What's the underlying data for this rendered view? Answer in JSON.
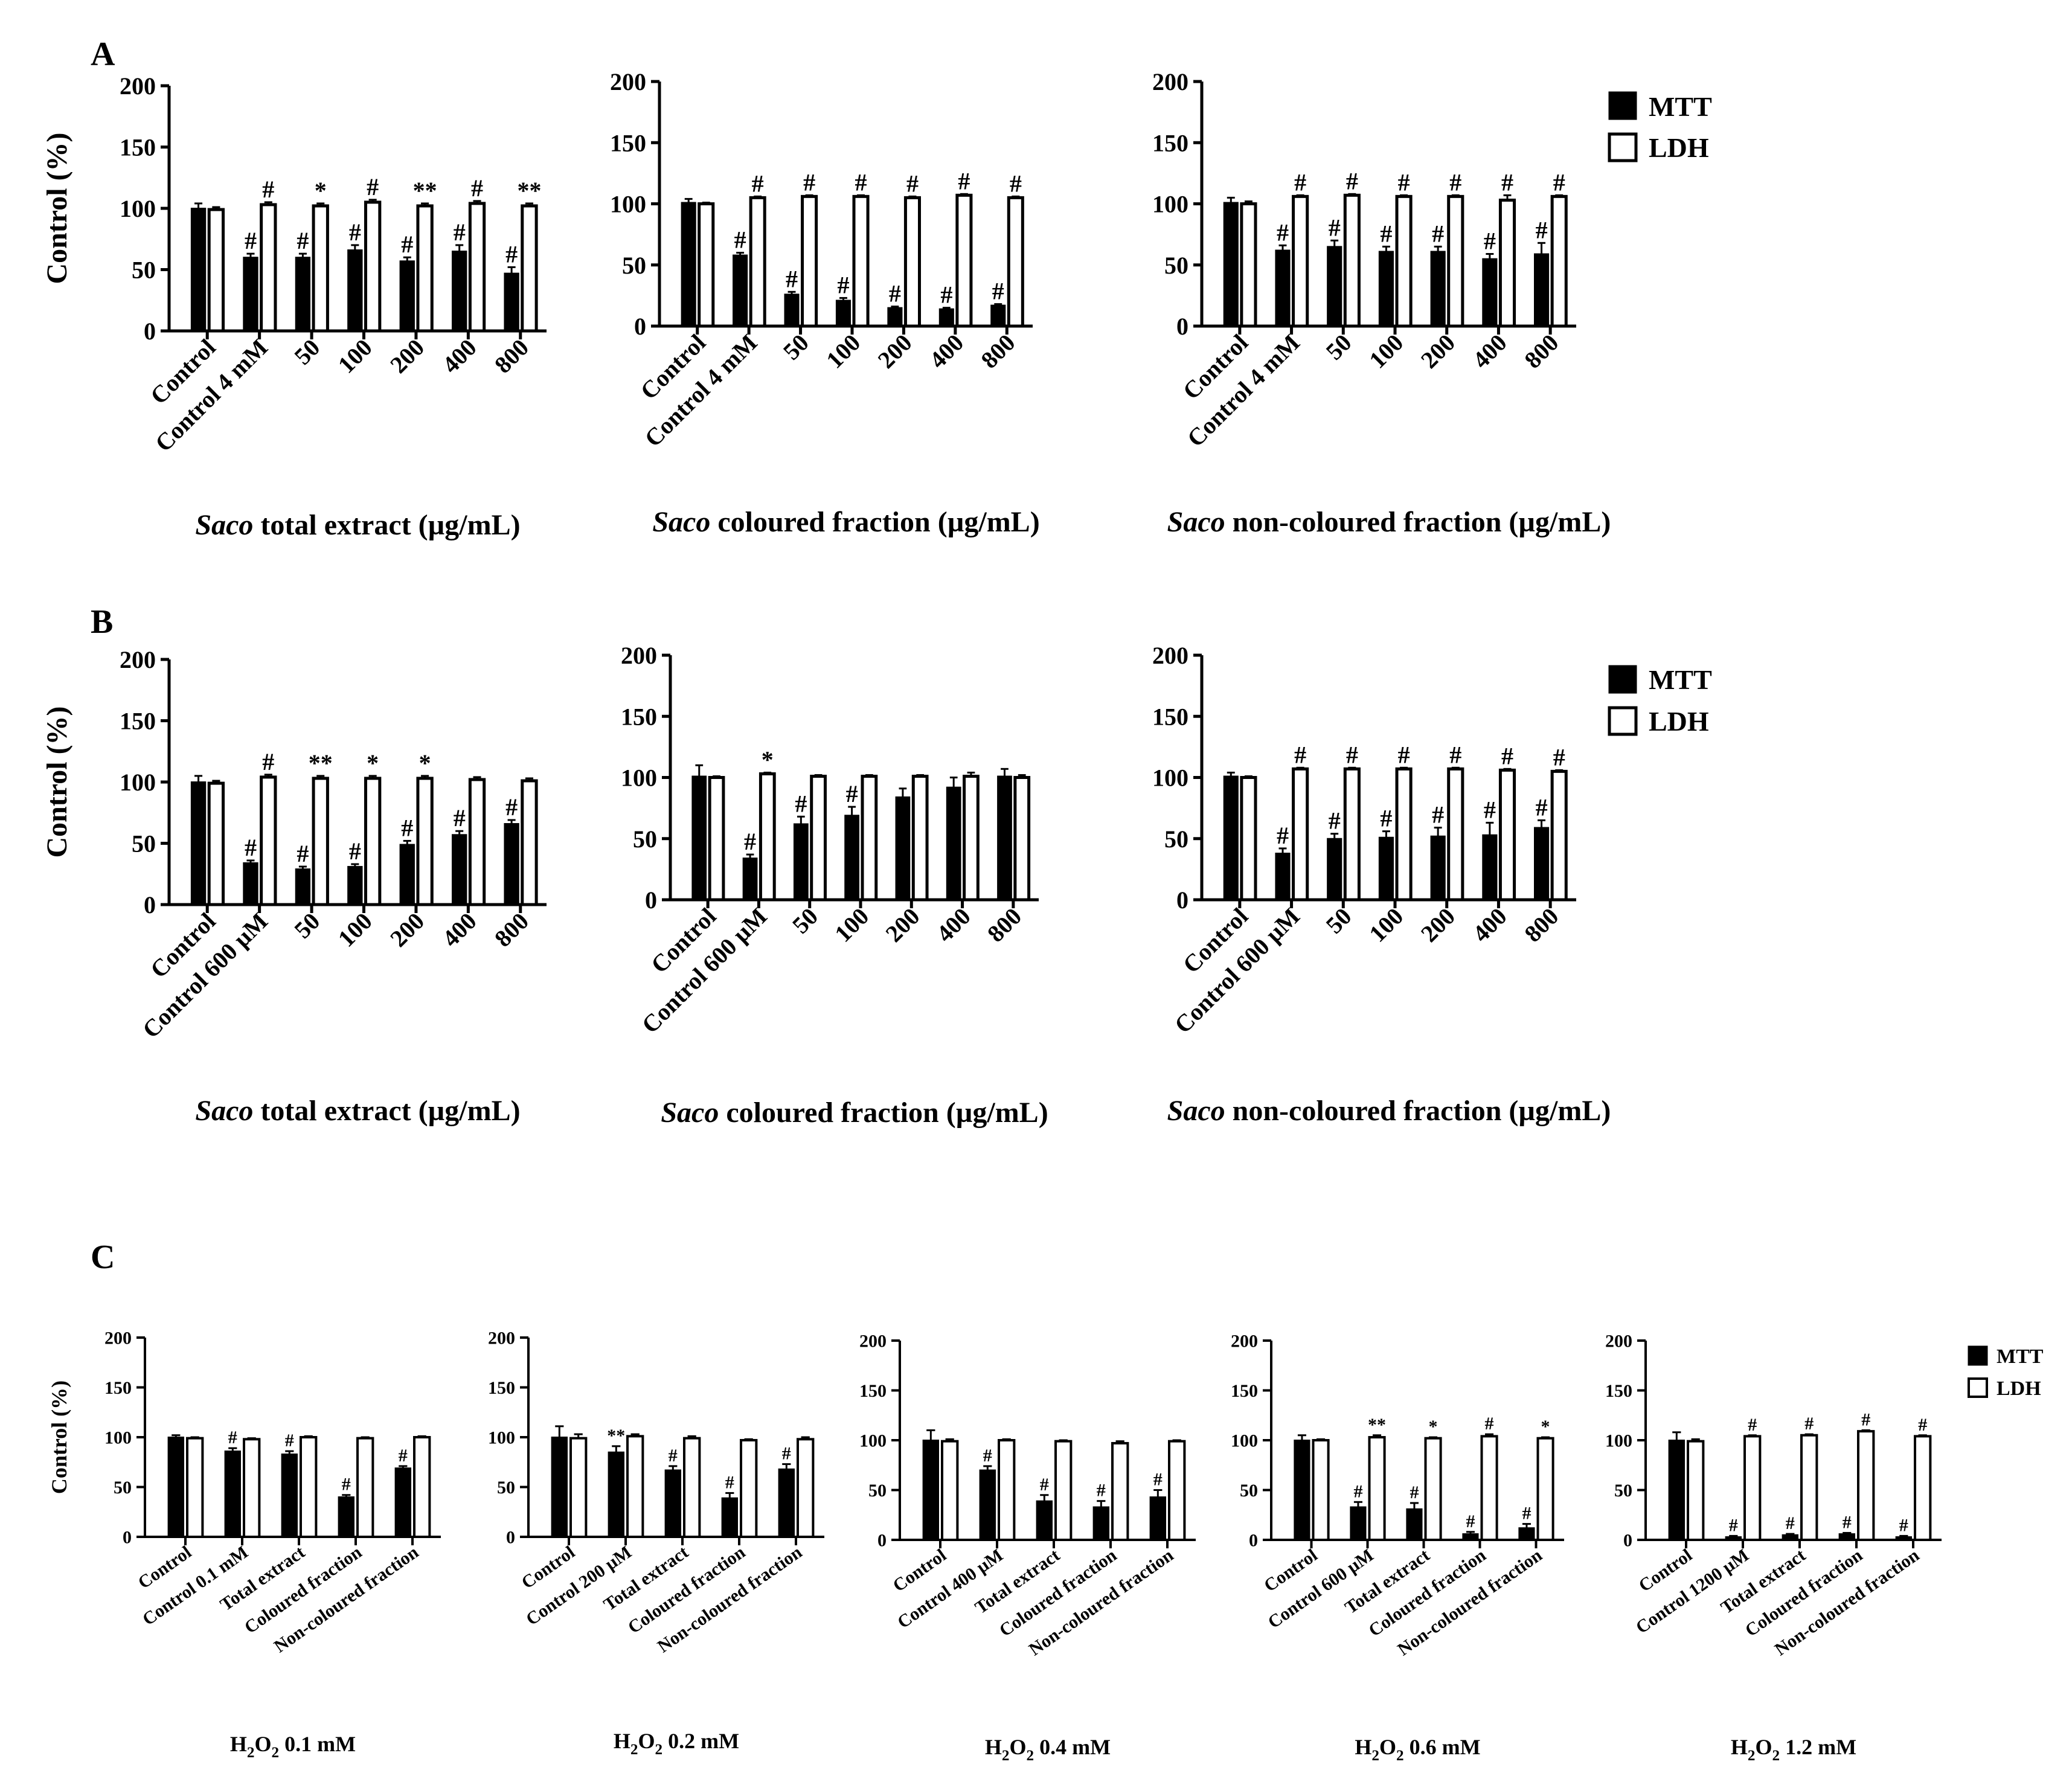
{
  "panel_labels": [
    "A",
    "B",
    "C"
  ],
  "legend": {
    "mtt": "MTT",
    "ldh": "LDH"
  },
  "colors": {
    "mtt": "#000000",
    "ldh": "#ffffff",
    "stroke": "#000000"
  },
  "chart_data": [
    {
      "id": "A1",
      "type": "bar",
      "ylabel": "Control (%)",
      "ylim": [
        0,
        200
      ],
      "yticks": [
        0,
        50,
        100,
        150,
        200
      ],
      "xlabel": {
        "italic": "Saco",
        "rest": " total extract (µg/mL)"
      },
      "categories": [
        "Control",
        "Control 4 mM",
        "50",
        "100",
        "200",
        "400",
        "800"
      ],
      "series": [
        {
          "name": "MTT",
          "values": [
            100,
            60,
            60,
            66,
            57,
            65,
            47
          ],
          "errors": [
            4,
            3,
            3,
            4,
            3,
            5,
            5
          ],
          "marks": [
            "",
            "#",
            "#",
            "#",
            "#",
            "#",
            "#"
          ]
        },
        {
          "name": "LDH",
          "values": [
            99,
            103,
            102,
            105,
            102,
            104,
            102
          ],
          "errors": [
            2,
            2,
            2,
            2,
            2,
            2,
            2
          ],
          "marks": [
            "",
            "#",
            "*",
            "#",
            "**",
            "#",
            "**"
          ]
        }
      ]
    },
    {
      "id": "A2",
      "type": "bar",
      "ylabel": "",
      "ylim": [
        0,
        200
      ],
      "yticks": [
        0,
        50,
        100,
        150,
        200
      ],
      "xlabel": {
        "italic": "Saco",
        "rest": " coloured fraction (µg/mL)"
      },
      "categories": [
        "Control",
        "Control 4 mM",
        "50",
        "100",
        "200",
        "400",
        "800"
      ],
      "series": [
        {
          "name": "MTT",
          "values": [
            101,
            58,
            26,
            21,
            15,
            14,
            17
          ],
          "errors": [
            3,
            2,
            2,
            2,
            1,
            1,
            1
          ],
          "marks": [
            "",
            "#",
            "#",
            "#",
            "#",
            "#",
            "#"
          ]
        },
        {
          "name": "LDH",
          "values": [
            100,
            105,
            106,
            106,
            105,
            107,
            105
          ],
          "errors": [
            1,
            1,
            1,
            1,
            1,
            1,
            1
          ],
          "marks": [
            "",
            "#",
            "#",
            "#",
            "#",
            "#",
            "#"
          ]
        }
      ]
    },
    {
      "id": "A3",
      "type": "bar",
      "ylabel": "",
      "ylim": [
        0,
        200
      ],
      "yticks": [
        0,
        50,
        100,
        150,
        200
      ],
      "xlabel": {
        "italic": "Saco",
        "rest": " non-coloured fraction (µg/mL)"
      },
      "categories": [
        "Control",
        "Control 4 mM",
        "50",
        "100",
        "200",
        "400",
        "800"
      ],
      "series": [
        {
          "name": "MTT",
          "values": [
            101,
            62,
            65,
            61,
            61,
            55,
            59
          ],
          "errors": [
            4,
            4,
            5,
            4,
            4,
            4,
            9
          ],
          "marks": [
            "",
            "#",
            "#",
            "#",
            "#",
            "#",
            "#"
          ]
        },
        {
          "name": "LDH",
          "values": [
            100,
            106,
            107,
            106,
            106,
            103,
            106
          ],
          "errors": [
            2,
            1,
            1,
            1,
            1,
            4,
            1
          ],
          "marks": [
            "",
            "#",
            "#",
            "#",
            "#",
            "#",
            "#"
          ]
        }
      ]
    },
    {
      "id": "B1",
      "type": "bar",
      "ylabel": "Control (%)",
      "ylim": [
        0,
        200
      ],
      "yticks": [
        0,
        50,
        100,
        150,
        200
      ],
      "xlabel": {
        "italic": "Saco",
        "rest": " total extract (µg/mL)"
      },
      "categories": [
        "Control",
        "Control 600 µM",
        "50",
        "100",
        "200",
        "400",
        "800"
      ],
      "series": [
        {
          "name": "MTT",
          "values": [
            100,
            34,
            29,
            31,
            49,
            57,
            66
          ],
          "errors": [
            5,
            2,
            2,
            2,
            3,
            3,
            3
          ],
          "marks": [
            "",
            "#",
            "#",
            "#",
            "#",
            "#",
            "#"
          ]
        },
        {
          "name": "LDH",
          "values": [
            99,
            104,
            103,
            103,
            103,
            102,
            101
          ],
          "errors": [
            2,
            2,
            2,
            2,
            2,
            2,
            2
          ],
          "marks": [
            "",
            "#",
            "**",
            "*",
            "*",
            "",
            ""
          ]
        }
      ]
    },
    {
      "id": "B2",
      "type": "bar",
      "ylabel": "",
      "ylim": [
        0,
        200
      ],
      "yticks": [
        0,
        50,
        100,
        150,
        200
      ],
      "xlabel": {
        "italic": "Saco",
        "rest": " coloured fraction (µg/mL)"
      },
      "categories": [
        "Control",
        "Control 600 µM",
        "50",
        "100",
        "200",
        "400",
        "800"
      ],
      "series": [
        {
          "name": "MTT",
          "values": [
            101,
            34,
            62,
            69,
            84,
            92,
            101
          ],
          "errors": [
            9,
            3,
            6,
            7,
            7,
            8,
            6
          ],
          "marks": [
            "",
            "#",
            "#",
            "#",
            "",
            "",
            ""
          ]
        },
        {
          "name": "LDH",
          "values": [
            100,
            103,
            101,
            101,
            101,
            101,
            100
          ],
          "errors": [
            1,
            1,
            1,
            1,
            1,
            3,
            2
          ],
          "marks": [
            "",
            "*",
            "",
            "",
            "",
            "",
            ""
          ]
        }
      ]
    },
    {
      "id": "B3",
      "type": "bar",
      "ylabel": "",
      "ylim": [
        0,
        200
      ],
      "yticks": [
        0,
        50,
        100,
        150,
        200
      ],
      "xlabel": {
        "italic": "Saco",
        "rest": " non-coloured fraction (µg/mL)"
      },
      "categories": [
        "Control",
        "Control 600 µM",
        "50",
        "100",
        "200",
        "400",
        "800"
      ],
      "series": [
        {
          "name": "MTT",
          "values": [
            101,
            38,
            50,
            51,
            52,
            53,
            59
          ],
          "errors": [
            3,
            4,
            4,
            5,
            7,
            10,
            6
          ],
          "marks": [
            "",
            "#",
            "#",
            "#",
            "#",
            "#",
            "#"
          ]
        },
        {
          "name": "LDH",
          "values": [
            100,
            107,
            107,
            107,
            107,
            106,
            105
          ],
          "errors": [
            1,
            1,
            1,
            1,
            1,
            1,
            1
          ],
          "marks": [
            "",
            "#",
            "#",
            "#",
            "#",
            "#",
            "#"
          ]
        }
      ]
    },
    {
      "id": "C1",
      "type": "bar",
      "ylabel": "Control (%)",
      "ylim": [
        0,
        200
      ],
      "yticks": [
        0,
        50,
        100,
        150,
        200
      ],
      "xlabel": {
        "pre": "H",
        "sub1": "2",
        "mid": "O",
        "sub2": "2",
        "post": " 0.1 mM"
      },
      "categories": [
        "Control",
        "Control 0.1 mM",
        "Total extract",
        "Coloured fraction",
        "Non-coloured fraction"
      ],
      "series": [
        {
          "name": "MTT",
          "values": [
            100,
            86,
            83,
            40,
            69
          ],
          "errors": [
            2,
            3,
            3,
            2,
            2
          ],
          "marks": [
            "",
            "#",
            "#",
            "#",
            "#"
          ]
        },
        {
          "name": "LDH",
          "values": [
            99,
            98,
            100,
            99,
            100
          ],
          "errors": [
            1,
            1,
            1,
            1,
            1
          ],
          "marks": [
            "",
            "",
            "",
            "",
            ""
          ]
        }
      ]
    },
    {
      "id": "C2",
      "type": "bar",
      "ylabel": "",
      "ylim": [
        0,
        200
      ],
      "yticks": [
        0,
        50,
        100,
        150,
        200
      ],
      "xlabel": {
        "pre": "H",
        "sub1": "2",
        "mid": "O",
        "sub2": "2",
        "post": " 0.2 mM"
      },
      "categories": [
        "Control",
        "Control 200 µM",
        "Total extract",
        "Coloured fraction",
        "Non-coloured fraction"
      ],
      "series": [
        {
          "name": "MTT",
          "values": [
            100,
            85,
            67,
            39,
            68
          ],
          "errors": [
            11,
            6,
            4,
            5,
            5
          ],
          "marks": [
            "",
            "**",
            "#",
            "#",
            "#"
          ]
        },
        {
          "name": "LDH",
          "values": [
            99,
            101,
            99,
            97,
            98
          ],
          "errors": [
            4,
            2,
            2,
            1,
            2
          ],
          "marks": [
            "",
            "",
            "",
            "",
            ""
          ]
        }
      ]
    },
    {
      "id": "C3",
      "type": "bar",
      "ylabel": "",
      "ylim": [
        0,
        200
      ],
      "yticks": [
        0,
        50,
        100,
        150,
        200
      ],
      "xlabel": {
        "pre": "H",
        "sub1": "2",
        "mid": "O",
        "sub2": "2",
        "post": " 0.4 mM"
      },
      "categories": [
        "Control",
        "Control 400 µM",
        "Total extract",
        "Coloured fraction",
        "Non-coloured fraction"
      ],
      "series": [
        {
          "name": "MTT",
          "values": [
            100,
            70,
            39,
            33,
            43
          ],
          "errors": [
            10,
            4,
            6,
            6,
            7
          ],
          "marks": [
            "",
            "#",
            "#",
            "#",
            "#"
          ]
        },
        {
          "name": "LDH",
          "values": [
            99,
            100,
            99,
            97,
            99
          ],
          "errors": [
            2,
            1,
            1,
            2,
            1
          ],
          "marks": [
            "",
            "",
            "",
            "",
            ""
          ]
        }
      ]
    },
    {
      "id": "C4",
      "type": "bar",
      "ylabel": "",
      "ylim": [
        0,
        200
      ],
      "yticks": [
        0,
        50,
        100,
        150,
        200
      ],
      "xlabel": {
        "pre": "H",
        "sub1": "2",
        "mid": "O",
        "sub2": "2",
        "post": " 0.6 mM"
      },
      "categories": [
        "Control",
        "Control 600 µM",
        "Total extract",
        "Coloured fraction",
        "Non-coloured fraction"
      ],
      "series": [
        {
          "name": "MTT",
          "values": [
            100,
            33,
            31,
            6,
            12
          ],
          "errors": [
            5,
            5,
            6,
            2,
            4
          ],
          "marks": [
            "",
            "#",
            "#",
            "#",
            "#"
          ]
        },
        {
          "name": "LDH",
          "values": [
            100,
            103,
            102,
            104,
            102
          ],
          "errors": [
            1,
            2,
            1,
            2,
            1
          ],
          "marks": [
            "",
            "**",
            "*",
            "#",
            "*"
          ]
        }
      ]
    },
    {
      "id": "C5",
      "type": "bar",
      "ylabel": "",
      "ylim": [
        0,
        200
      ],
      "yticks": [
        0,
        50,
        100,
        150,
        200
      ],
      "xlabel": {
        "pre": "H",
        "sub1": "2",
        "mid": "O",
        "sub2": "2",
        "post": " 1.2 mM"
      },
      "categories": [
        "Control",
        "Control 1200 µM",
        "Total extract",
        "Coloured fraction",
        "Non-coloured fraction"
      ],
      "series": [
        {
          "name": "MTT",
          "values": [
            100,
            3,
            5,
            6,
            3
          ],
          "errors": [
            8,
            1,
            1,
            1,
            1
          ],
          "marks": [
            "",
            "#",
            "#",
            "#",
            "#"
          ]
        },
        {
          "name": "LDH",
          "values": [
            99,
            104,
            105,
            109,
            104
          ],
          "errors": [
            2,
            1,
            1,
            1,
            1
          ],
          "marks": [
            "",
            "#",
            "#",
            "#",
            "#"
          ]
        }
      ]
    }
  ]
}
